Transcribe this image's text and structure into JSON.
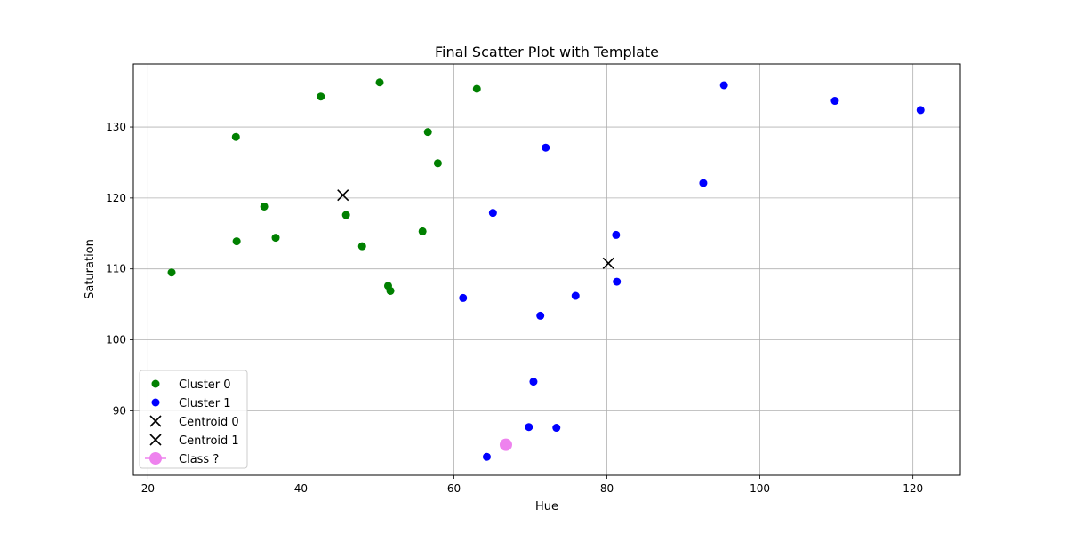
{
  "chart_data": {
    "type": "scatter",
    "title": "Final Scatter Plot with Template",
    "xlabel": "Hue",
    "ylabel": "Saturation",
    "xlim": [
      18.1,
      126.2
    ],
    "ylim": [
      80.9,
      138.9
    ],
    "xticks": [
      20,
      40,
      60,
      80,
      100,
      120
    ],
    "yticks": [
      90,
      100,
      110,
      120,
      130
    ],
    "grid": true,
    "legend_position": "lower-left",
    "series": [
      {
        "name": "Cluster 0",
        "marker": "circle",
        "color": "#008000",
        "points": [
          [
            23.1,
            109.5
          ],
          [
            31.5,
            128.6
          ],
          [
            31.6,
            113.9
          ],
          [
            35.2,
            118.8
          ],
          [
            36.7,
            114.4
          ],
          [
            42.6,
            134.3
          ],
          [
            45.9,
            117.6
          ],
          [
            48.0,
            113.2
          ],
          [
            50.3,
            136.3
          ],
          [
            51.4,
            107.6
          ],
          [
            51.7,
            106.9
          ],
          [
            55.9,
            115.3
          ],
          [
            56.6,
            129.3
          ],
          [
            57.9,
            124.9
          ],
          [
            63.0,
            135.4
          ]
        ]
      },
      {
        "name": "Cluster 1",
        "marker": "circle",
        "color": "#0000ff",
        "points": [
          [
            61.2,
            105.9
          ],
          [
            65.1,
            117.9
          ],
          [
            72.0,
            127.1
          ],
          [
            71.3,
            103.4
          ],
          [
            75.9,
            106.2
          ],
          [
            81.2,
            114.8
          ],
          [
            81.3,
            108.2
          ],
          [
            92.6,
            122.1
          ],
          [
            95.3,
            135.9
          ],
          [
            109.8,
            133.7
          ],
          [
            121.0,
            132.4
          ],
          [
            70.4,
            94.1
          ],
          [
            69.8,
            87.7
          ],
          [
            73.4,
            87.6
          ],
          [
            64.3,
            83.5
          ]
        ]
      },
      {
        "name": "Centroid 0",
        "marker": "x",
        "color": "#000000",
        "points": [
          [
            45.5,
            120.4
          ]
        ]
      },
      {
        "name": "Centroid 1",
        "marker": "x",
        "color": "#000000",
        "points": [
          [
            80.2,
            110.8
          ]
        ]
      },
      {
        "name": " Class ?",
        "marker": "large-circle",
        "color": "#ee82ee",
        "points": [
          [
            66.8,
            85.2
          ]
        ]
      }
    ]
  }
}
